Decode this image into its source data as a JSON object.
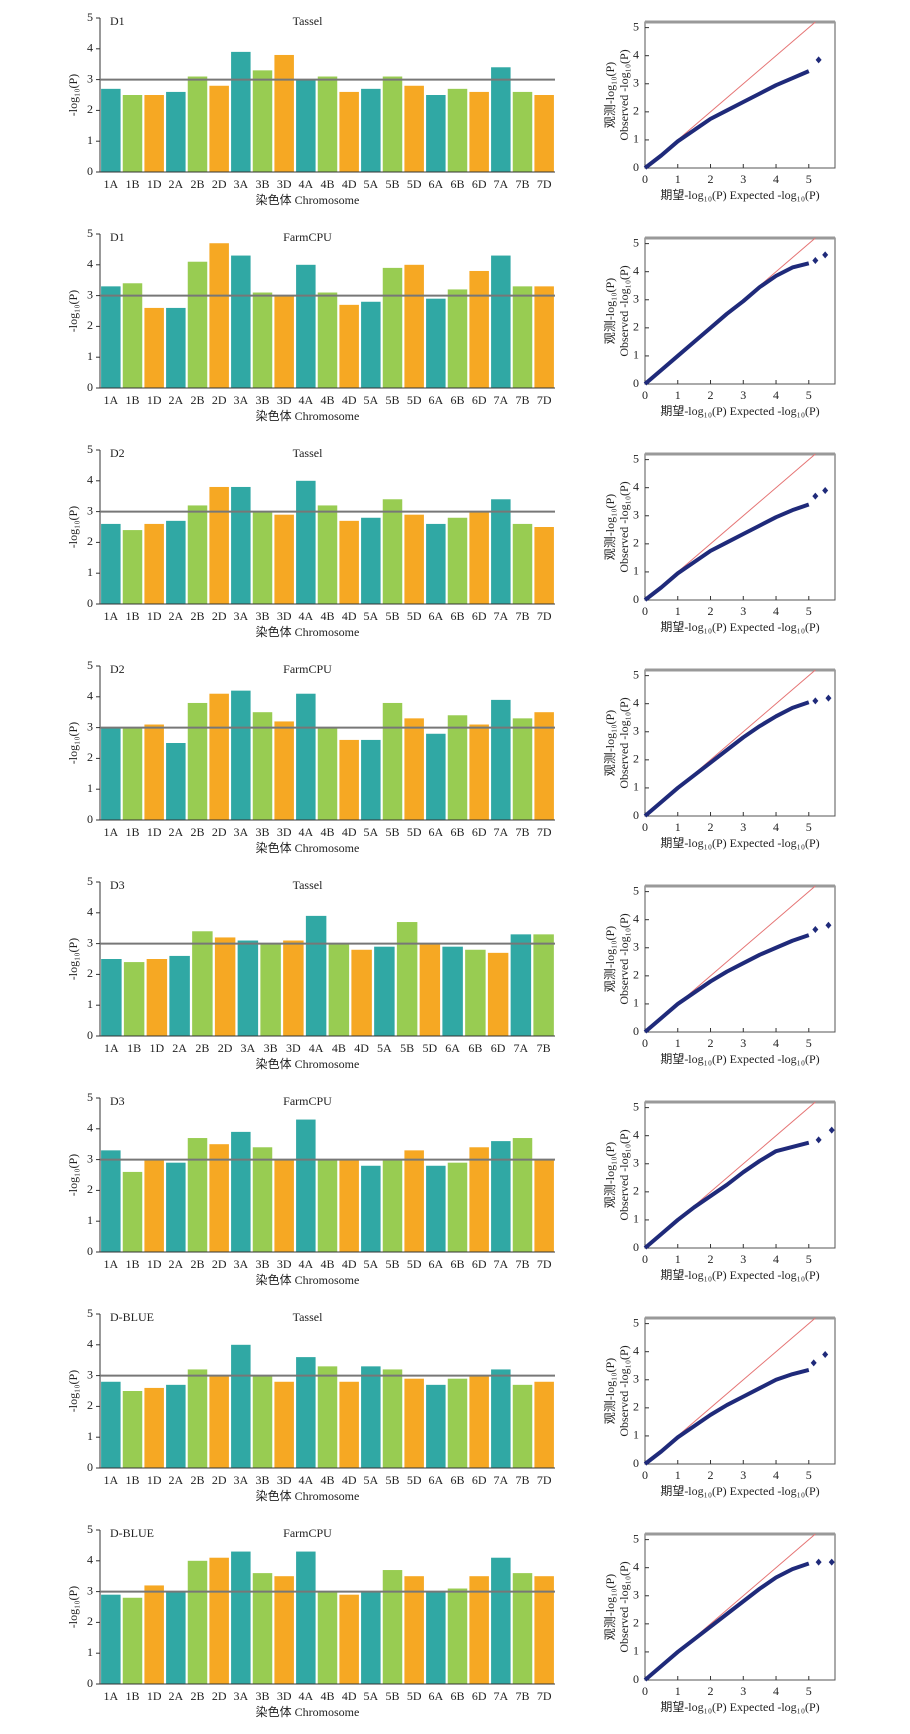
{
  "chart_data": [
    {
      "type": "bar",
      "title": "D1",
      "subtitle": "Tassel",
      "y_label": "-log₁₀(P)",
      "x_label": "染色体 Chromosome",
      "categories": [
        "1A",
        "1B",
        "1D",
        "2A",
        "2B",
        "2D",
        "3A",
        "3B",
        "3D",
        "4A",
        "4B",
        "4D",
        "5A",
        "5B",
        "5D",
        "6A",
        "6B",
        "6D",
        "7A",
        "7B",
        "7D"
      ],
      "values": [
        2.7,
        2.5,
        2.5,
        2.6,
        3.1,
        2.8,
        3.9,
        3.3,
        3.8,
        3.0,
        3.1,
        2.6,
        2.7,
        3.1,
        2.8,
        2.5,
        2.7,
        2.6,
        3.4,
        2.6,
        2.5
      ],
      "colors": [
        "#1a9e9a",
        "#8dc63f",
        "#f59e0b"
      ],
      "threshold": 3,
      "ylim": [
        0,
        5
      ],
      "yticks": [
        0,
        1,
        2,
        3,
        4,
        5
      ]
    },
    {
      "type": "scatter",
      "x_label": "期望-log₁₀(P) Expected -log₁₀(P)",
      "y_label": [
        "观测-log₁₀(P)",
        "Observed -log₁₀(P)"
      ],
      "x": [
        0,
        0.5,
        1,
        1.5,
        2,
        2.5,
        3,
        3.5,
        4,
        4.5,
        5
      ],
      "values": [
        0,
        0.45,
        0.95,
        1.35,
        1.75,
        2.05,
        2.35,
        2.65,
        2.95,
        3.2,
        3.45
      ],
      "outlier_x": [
        5.3
      ],
      "outlier_values": [
        3.85
      ],
      "color": "#1f2a7a",
      "ref_color": "#e57373",
      "xlim": [
        0,
        5.8
      ],
      "ylim": [
        0,
        5.2
      ],
      "xticks": [
        0,
        1,
        2,
        3,
        4,
        5
      ],
      "yticks": [
        0,
        1,
        2,
        3,
        4,
        5
      ]
    },
    {
      "type": "bar",
      "title": "D1",
      "subtitle": "FarmCPU",
      "y_label": "-log₁₀(P)",
      "x_label": "染色体 Chromosome",
      "categories": [
        "1A",
        "1B",
        "1D",
        "2A",
        "2B",
        "2D",
        "3A",
        "3B",
        "3D",
        "4A",
        "4B",
        "4D",
        "5A",
        "5B",
        "5D",
        "6A",
        "6B",
        "6D",
        "7A",
        "7B",
        "7D"
      ],
      "values": [
        3.3,
        3.4,
        2.6,
        2.6,
        4.1,
        4.7,
        4.3,
        3.1,
        3.0,
        4.0,
        3.1,
        2.7,
        2.8,
        3.9,
        4.0,
        2.9,
        3.2,
        3.8,
        4.3,
        3.3,
        3.3
      ],
      "colors": [
        "#1a9e9a",
        "#8dc63f",
        "#f59e0b"
      ],
      "threshold": 3,
      "ylim": [
        0,
        5
      ],
      "yticks": [
        0,
        1,
        2,
        3,
        4,
        5
      ]
    },
    {
      "type": "scatter",
      "x_label": "期望-log₁₀(P) Expected -log₁₀(P)",
      "y_label": [
        "观测-log₁₀(P)",
        "Observed -log₁₀(P)"
      ],
      "x": [
        0,
        0.5,
        1,
        1.5,
        2,
        2.5,
        3,
        3.5,
        4,
        4.5,
        5
      ],
      "values": [
        0,
        0.5,
        1,
        1.5,
        2,
        2.5,
        2.95,
        3.45,
        3.85,
        4.15,
        4.3
      ],
      "outlier_x": [
        5.2,
        5.5
      ],
      "outlier_values": [
        4.4,
        4.6
      ],
      "color": "#1f2a7a",
      "ref_color": "#e57373",
      "xlim": [
        0,
        5.8
      ],
      "ylim": [
        0,
        5.2
      ],
      "xticks": [
        0,
        1,
        2,
        3,
        4,
        5
      ],
      "yticks": [
        0,
        1,
        2,
        3,
        4,
        5
      ]
    },
    {
      "type": "bar",
      "title": "D2",
      "subtitle": "Tassel",
      "y_label": "-log₁₀(P)",
      "x_label": "染色体 Chromosome",
      "categories": [
        "1A",
        "1B",
        "1D",
        "2A",
        "2B",
        "2D",
        "3A",
        "3B",
        "3D",
        "4A",
        "4B",
        "4D",
        "5A",
        "5B",
        "5D",
        "6A",
        "6B",
        "6D",
        "7A",
        "7B",
        "7D"
      ],
      "values": [
        2.6,
        2.4,
        2.6,
        2.7,
        3.2,
        3.8,
        3.8,
        3.0,
        2.9,
        4.0,
        3.2,
        2.7,
        2.8,
        3.4,
        2.9,
        2.6,
        2.8,
        3.0,
        3.4,
        2.6,
        2.5
      ],
      "colors": [
        "#1a9e9a",
        "#8dc63f",
        "#f59e0b"
      ],
      "threshold": 3,
      "ylim": [
        0,
        5
      ],
      "yticks": [
        0,
        1,
        2,
        3,
        4,
        5
      ]
    },
    {
      "type": "scatter",
      "x_label": "期望-log₁₀(P) Expected -log₁₀(P)",
      "y_label": [
        "观测-log₁₀(P)",
        "Observed -log₁₀(P)"
      ],
      "x": [
        0,
        0.5,
        1,
        1.5,
        2,
        2.5,
        3,
        3.5,
        4,
        4.5,
        5
      ],
      "values": [
        0,
        0.45,
        0.95,
        1.35,
        1.75,
        2.05,
        2.35,
        2.65,
        2.95,
        3.2,
        3.4
      ],
      "outlier_x": [
        5.2,
        5.5
      ],
      "outlier_values": [
        3.7,
        3.9
      ],
      "color": "#1f2a7a",
      "ref_color": "#e57373",
      "xlim": [
        0,
        5.8
      ],
      "ylim": [
        0,
        5.2
      ],
      "xticks": [
        0,
        1,
        2,
        3,
        4,
        5
      ],
      "yticks": [
        0,
        1,
        2,
        3,
        4,
        5
      ]
    },
    {
      "type": "bar",
      "title": "D2",
      "subtitle": "FarmCPU",
      "y_label": "-log₁₀(P)",
      "x_label": "染色体 Chromosome",
      "categories": [
        "1A",
        "1B",
        "1D",
        "2A",
        "2B",
        "2D",
        "3A",
        "3B",
        "3D",
        "4A",
        "4B",
        "4D",
        "5A",
        "5B",
        "5D",
        "6A",
        "6B",
        "6D",
        "7A",
        "7B",
        "7D"
      ],
      "values": [
        3.0,
        3.0,
        3.1,
        2.5,
        3.8,
        4.1,
        4.2,
        3.5,
        3.2,
        4.1,
        3.0,
        2.6,
        2.6,
        3.8,
        3.3,
        2.8,
        3.4,
        3.1,
        3.9,
        3.3,
        3.5
      ],
      "colors": [
        "#1a9e9a",
        "#8dc63f",
        "#f59e0b"
      ],
      "threshold": 3,
      "ylim": [
        0,
        5
      ],
      "yticks": [
        0,
        1,
        2,
        3,
        4,
        5
      ]
    },
    {
      "type": "scatter",
      "x_label": "期望-log₁₀(P) Expected -log₁₀(P)",
      "y_label": [
        "观测-log₁₀(P)",
        "Observed -log₁₀(P)"
      ],
      "x": [
        0,
        0.5,
        1,
        1.5,
        2,
        2.5,
        3,
        3.5,
        4,
        4.5,
        5
      ],
      "values": [
        0,
        0.5,
        1,
        1.45,
        1.9,
        2.35,
        2.8,
        3.2,
        3.55,
        3.85,
        4.05
      ],
      "outlier_x": [
        5.2,
        5.6
      ],
      "outlier_values": [
        4.1,
        4.2
      ],
      "color": "#1f2a7a",
      "ref_color": "#e57373",
      "xlim": [
        0,
        5.8
      ],
      "ylim": [
        0,
        5.2
      ],
      "xticks": [
        0,
        1,
        2,
        3,
        4,
        5
      ],
      "yticks": [
        0,
        1,
        2,
        3,
        4,
        5
      ]
    },
    {
      "type": "bar",
      "title": "D3",
      "subtitle": "Tassel",
      "y_label": "-log₁₀(P)",
      "x_label": "染色体 Chromosome",
      "categories": [
        "1A",
        "1B",
        "1D",
        "2A",
        "2B",
        "2D",
        "3A",
        "3B",
        "3D",
        "4A",
        "4B",
        "4D",
        "5A",
        "5B",
        "5D",
        "6A",
        "6B",
        "6D",
        "7A",
        "7B"
      ],
      "values": [
        2.5,
        2.4,
        2.5,
        2.6,
        3.4,
        3.2,
        3.1,
        3.0,
        3.1,
        3.9,
        3.0,
        2.8,
        2.9,
        3.7,
        3.0,
        2.9,
        2.8,
        2.7,
        3.3,
        3.3
      ],
      "colors": [
        "#1a9e9a",
        "#8dc63f",
        "#f59e0b"
      ],
      "threshold": 3,
      "ylim": [
        0,
        5
      ],
      "yticks": [
        0,
        1,
        2,
        3,
        4,
        5
      ]
    },
    {
      "type": "scatter",
      "x_label": "期望-log₁₀(P) Expected -log₁₀(P)",
      "y_label": [
        "观测-log₁₀(P)",
        "Observed -log₁₀(P)"
      ],
      "x": [
        0,
        0.5,
        1,
        1.5,
        2,
        2.5,
        3,
        3.5,
        4,
        4.5,
        5
      ],
      "values": [
        0,
        0.5,
        1,
        1.4,
        1.8,
        2.15,
        2.45,
        2.75,
        3.0,
        3.25,
        3.45
      ],
      "outlier_x": [
        5.2,
        5.6
      ],
      "outlier_values": [
        3.65,
        3.8
      ],
      "color": "#1f2a7a",
      "ref_color": "#e57373",
      "xlim": [
        0,
        5.8
      ],
      "ylim": [
        0,
        5.2
      ],
      "xticks": [
        0,
        1,
        2,
        3,
        4,
        5
      ],
      "yticks": [
        0,
        1,
        2,
        3,
        4,
        5
      ]
    },
    {
      "type": "bar",
      "title": "D3",
      "subtitle": "FarmCPU",
      "y_label": "-log₁₀(P)",
      "x_label": "染色体 Chromosome",
      "categories": [
        "1A",
        "1B",
        "1D",
        "2A",
        "2B",
        "2D",
        "3A",
        "3B",
        "3D",
        "4A",
        "4B",
        "4D",
        "5A",
        "5B",
        "5D",
        "6A",
        "6B",
        "6D",
        "7A",
        "7B",
        "7D"
      ],
      "values": [
        3.3,
        2.6,
        3.0,
        2.9,
        3.7,
        3.5,
        3.9,
        3.4,
        3.0,
        4.3,
        3.0,
        3.0,
        2.8,
        3.0,
        3.3,
        2.8,
        2.9,
        3.4,
        3.6,
        3.7,
        3.0
      ],
      "colors": [
        "#1a9e9a",
        "#8dc63f",
        "#f59e0b"
      ],
      "threshold": 3,
      "ylim": [
        0,
        5
      ],
      "yticks": [
        0,
        1,
        2,
        3,
        4,
        5
      ]
    },
    {
      "type": "scatter",
      "x_label": "期望-log₁₀(P) Expected -log₁₀(P)",
      "y_label": [
        "观测-log₁₀(P)",
        "Observed -log₁₀(P)"
      ],
      "x": [
        0,
        0.5,
        1,
        1.5,
        2,
        2.5,
        3,
        3.5,
        4,
        4.5,
        5
      ],
      "values": [
        0,
        0.5,
        1,
        1.45,
        1.85,
        2.25,
        2.7,
        3.1,
        3.45,
        3.6,
        3.75
      ],
      "outlier_x": [
        5.3,
        5.7
      ],
      "outlier_values": [
        3.85,
        4.2
      ],
      "color": "#1f2a7a",
      "ref_color": "#e57373",
      "xlim": [
        0,
        5.8
      ],
      "ylim": [
        0,
        5.2
      ],
      "xticks": [
        0,
        1,
        2,
        3,
        4,
        5
      ],
      "yticks": [
        0,
        1,
        2,
        3,
        4,
        5
      ]
    },
    {
      "type": "bar",
      "title": "D-BLUE",
      "subtitle": "Tassel",
      "y_label": "-log₁₀(P)",
      "x_label": "染色体 Chromosome",
      "categories": [
        "1A",
        "1B",
        "1D",
        "2A",
        "2B",
        "2D",
        "3A",
        "3B",
        "3D",
        "4A",
        "4B",
        "4D",
        "5A",
        "5B",
        "5D",
        "6A",
        "6B",
        "6D",
        "7A",
        "7B",
        "7D"
      ],
      "values": [
        2.8,
        2.5,
        2.6,
        2.7,
        3.2,
        3.0,
        4.0,
        3.0,
        2.8,
        3.6,
        3.3,
        2.8,
        3.3,
        3.2,
        2.9,
        2.7,
        2.9,
        3.0,
        3.2,
        2.7,
        2.8
      ],
      "colors": [
        "#1a9e9a",
        "#8dc63f",
        "#f59e0b"
      ],
      "threshold": 3,
      "ylim": [
        0,
        5
      ],
      "yticks": [
        0,
        1,
        2,
        3,
        4,
        5
      ]
    },
    {
      "type": "scatter",
      "x_label": "期望-log₁₀(P) Expected -log₁₀(P)",
      "y_label": [
        "观测-log₁₀(P)",
        "Observed -log₁₀(P)"
      ],
      "x": [
        0,
        0.5,
        1,
        1.5,
        2,
        2.5,
        3,
        3.5,
        4,
        4.5,
        5
      ],
      "values": [
        0,
        0.45,
        0.95,
        1.35,
        1.75,
        2.1,
        2.4,
        2.7,
        3.0,
        3.2,
        3.35
      ],
      "outlier_x": [
        5.15,
        5.5
      ],
      "outlier_values": [
        3.6,
        3.9
      ],
      "color": "#1f2a7a",
      "ref_color": "#e57373",
      "xlim": [
        0,
        5.8
      ],
      "ylim": [
        0,
        5.2
      ],
      "xticks": [
        0,
        1,
        2,
        3,
        4,
        5
      ],
      "yticks": [
        0,
        1,
        2,
        3,
        4,
        5
      ]
    },
    {
      "type": "bar",
      "title": "D-BLUE",
      "subtitle": "FarmCPU",
      "y_label": "-log₁₀(P)",
      "x_label": "染色体 Chromosome",
      "categories": [
        "1A",
        "1B",
        "1D",
        "2A",
        "2B",
        "2D",
        "3A",
        "3B",
        "3D",
        "4A",
        "4B",
        "4D",
        "5A",
        "5B",
        "5D",
        "6A",
        "6B",
        "6D",
        "7A",
        "7B",
        "7D"
      ],
      "values": [
        2.9,
        2.8,
        3.2,
        3.0,
        4.0,
        4.1,
        4.3,
        3.6,
        3.5,
        4.3,
        3.0,
        2.9,
        3.0,
        3.7,
        3.5,
        3.0,
        3.1,
        3.5,
        4.1,
        3.6,
        3.5
      ],
      "colors": [
        "#1a9e9a",
        "#8dc63f",
        "#f59e0b"
      ],
      "threshold": 3,
      "ylim": [
        0,
        5
      ],
      "yticks": [
        0,
        1,
        2,
        3,
        4,
        5
      ]
    },
    {
      "type": "scatter",
      "x_label": "期望-log₁₀(P) Expected -log₁₀(P)",
      "y_label": [
        "观测-log₁₀(P)",
        "Observed -log₁₀(P)"
      ],
      "x": [
        0,
        0.5,
        1,
        1.5,
        2,
        2.5,
        3,
        3.5,
        4,
        4.5,
        5
      ],
      "values": [
        0,
        0.5,
        1,
        1.45,
        1.9,
        2.35,
        2.8,
        3.25,
        3.65,
        3.95,
        4.15
      ],
      "outlier_x": [
        5.3,
        5.7
      ],
      "outlier_values": [
        4.2,
        4.2
      ],
      "color": "#1f2a7a",
      "ref_color": "#e57373",
      "xlim": [
        0,
        5.8
      ],
      "ylim": [
        0,
        5.2
      ],
      "xticks": [
        0,
        1,
        2,
        3,
        4,
        5
      ],
      "yticks": [
        0,
        1,
        2,
        3,
        4,
        5
      ]
    }
  ]
}
